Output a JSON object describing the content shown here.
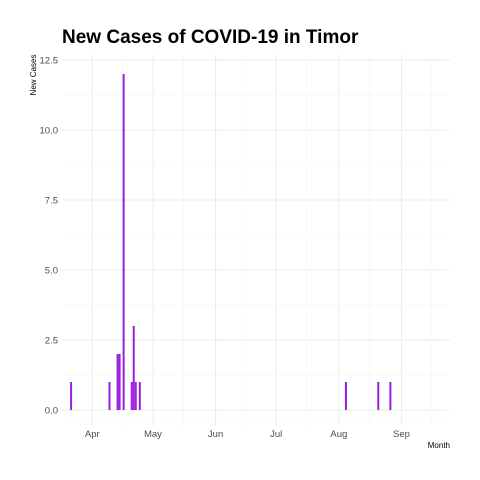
{
  "chart_data": {
    "type": "bar",
    "title": "New Cases of COVID-19 in Timor",
    "xlabel": "Month",
    "ylabel": "New Cases",
    "x_ticks": [
      "Apr",
      "May",
      "Jun",
      "Jul",
      "Aug",
      "Sep"
    ],
    "y_ticks": [
      "0.0",
      "2.5",
      "5.0",
      "7.5",
      "10.0",
      "12.5"
    ],
    "ylim": [
      0,
      12.5
    ],
    "xlim": [
      "2020-03-17",
      "2020-09-25"
    ],
    "grid": true,
    "bar_color": "#9b1de0",
    "dates": [
      "2020-03-21",
      "2020-04-09",
      "2020-04-13",
      "2020-04-14",
      "2020-04-16",
      "2020-04-20",
      "2020-04-21",
      "2020-04-22",
      "2020-04-24",
      "2020-08-04",
      "2020-08-20",
      "2020-08-26"
    ],
    "values": [
      1,
      1,
      2,
      2,
      12,
      1,
      3,
      1,
      1,
      1,
      1,
      1
    ]
  }
}
